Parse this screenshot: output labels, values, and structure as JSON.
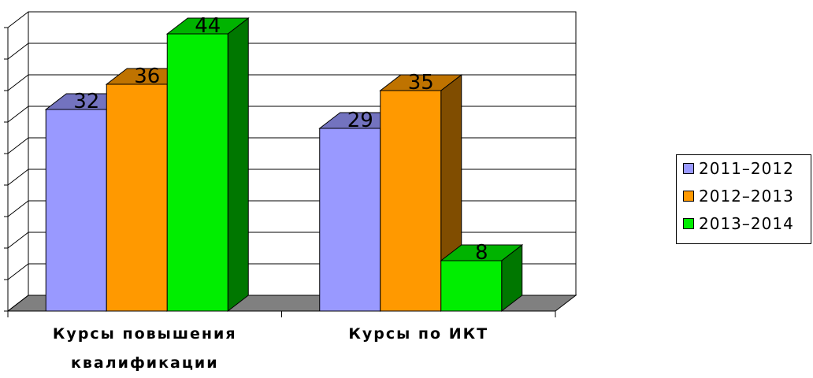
{
  "chart_data": {
    "type": "bar3d",
    "categories": [
      "Курсы повышения квалификации",
      "Курсы по ИКТ"
    ],
    "series": [
      {
        "name": "2011–2012",
        "color": "#9999ff",
        "values": [
          32,
          29
        ]
      },
      {
        "name": "2012–2013",
        "color": "#ff9900",
        "values": [
          36,
          35
        ]
      },
      {
        "name": "2013–2014",
        "color": "#00ee00",
        "values": [
          44,
          8
        ]
      }
    ],
    "ylim": [
      0,
      45
    ],
    "yticks": [
      0,
      5,
      10,
      15,
      20,
      25,
      30,
      35,
      40,
      45
    ],
    "grid": true,
    "legend": "right"
  }
}
